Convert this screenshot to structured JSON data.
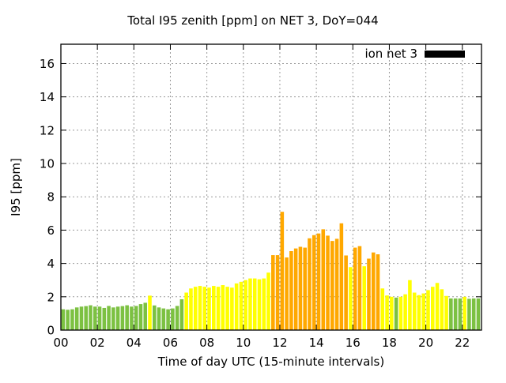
{
  "title": "Total I95 zenith [ppm] on NET 3, DoY=044",
  "legend": {
    "label": "ion net 3",
    "swatch_color": "#000000"
  },
  "axes": {
    "x_label": "Time of day UTC (15-minute intervals)",
    "y_label": "I95 [ppm]",
    "x_ticks": [
      "00",
      "02",
      "04",
      "06",
      "08",
      "10",
      "12",
      "14",
      "16",
      "18",
      "20",
      "22"
    ],
    "x_tick_hours": [
      0,
      2,
      4,
      6,
      8,
      10,
      12,
      14,
      16,
      18,
      20,
      22
    ],
    "y_ticks": [
      0,
      2,
      4,
      6,
      8,
      10,
      12,
      14,
      16
    ]
  },
  "chart_data": {
    "type": "bar",
    "title": "Total I95 zenith [ppm] on NET 3, DoY=044",
    "xlabel": "Time of day UTC (15-minute intervals)",
    "ylabel": "I95 [ppm]",
    "series_name": "ion net 3",
    "interval_minutes": 15,
    "x_start": "00:00",
    "x_end": "22:45",
    "ylim": [
      0,
      17.16
    ],
    "xlim_hours": [
      0,
      23.05
    ],
    "grid": true,
    "legend_position": "top-right",
    "times": [
      "00:00",
      "00:15",
      "00:30",
      "00:45",
      "01:00",
      "01:15",
      "01:30",
      "01:45",
      "02:00",
      "02:15",
      "02:30",
      "02:45",
      "03:00",
      "03:15",
      "03:30",
      "03:45",
      "04:00",
      "04:15",
      "04:30",
      "04:45",
      "05:00",
      "05:15",
      "05:30",
      "05:45",
      "06:00",
      "06:15",
      "06:30",
      "06:45",
      "07:00",
      "07:15",
      "07:30",
      "07:45",
      "08:00",
      "08:15",
      "08:30",
      "08:45",
      "09:00",
      "09:15",
      "09:30",
      "09:45",
      "10:00",
      "10:15",
      "10:30",
      "10:45",
      "11:00",
      "11:15",
      "11:30",
      "11:45",
      "12:00",
      "12:15",
      "12:30",
      "12:45",
      "13:00",
      "13:15",
      "13:30",
      "13:45",
      "14:00",
      "14:15",
      "14:30",
      "14:45",
      "15:00",
      "15:15",
      "15:30",
      "15:45",
      "16:00",
      "16:15",
      "16:30",
      "16:45",
      "17:00",
      "17:15",
      "17:30",
      "17:45",
      "18:00",
      "18:15",
      "18:30",
      "18:45",
      "19:00",
      "19:15",
      "19:30",
      "19:45",
      "20:00",
      "20:15",
      "20:30",
      "20:45",
      "21:00",
      "21:15",
      "21:30",
      "21:45",
      "22:00",
      "22:15",
      "22:30",
      "22:45"
    ],
    "values": [
      1.25,
      1.22,
      1.25,
      1.36,
      1.41,
      1.44,
      1.49,
      1.41,
      1.41,
      1.33,
      1.45,
      1.36,
      1.41,
      1.44,
      1.49,
      1.41,
      1.45,
      1.56,
      1.64,
      2.07,
      1.48,
      1.36,
      1.3,
      1.25,
      1.3,
      1.45,
      1.85,
      2.25,
      2.5,
      2.6,
      2.65,
      2.6,
      2.55,
      2.65,
      2.6,
      2.7,
      2.6,
      2.55,
      2.8,
      2.9,
      3.0,
      3.1,
      3.1,
      3.05,
      3.1,
      3.45,
      4.5,
      4.5,
      7.1,
      4.36,
      4.74,
      4.9,
      5.0,
      4.95,
      5.51,
      5.7,
      5.8,
      6.05,
      5.67,
      5.35,
      5.48,
      6.41,
      4.48,
      3.78,
      4.95,
      5.04,
      3.83,
      4.29,
      4.66,
      4.55,
      2.5,
      2.08,
      2.0,
      1.95,
      2.0,
      2.15,
      3.0,
      2.25,
      2.1,
      2.2,
      2.4,
      2.6,
      2.83,
      2.45,
      2.05,
      1.9,
      1.9,
      1.9,
      2.0,
      1.88,
      1.9,
      1.9
    ],
    "color_thresholds": {
      "yellow_from": 2.0,
      "orange_from": 4.0
    },
    "colors": {
      "green": "#7CC142",
      "yellow": "#FFFF00",
      "orange": "#FFA800"
    },
    "grid_color": "#9b9b9b",
    "border_color": "#000000"
  }
}
